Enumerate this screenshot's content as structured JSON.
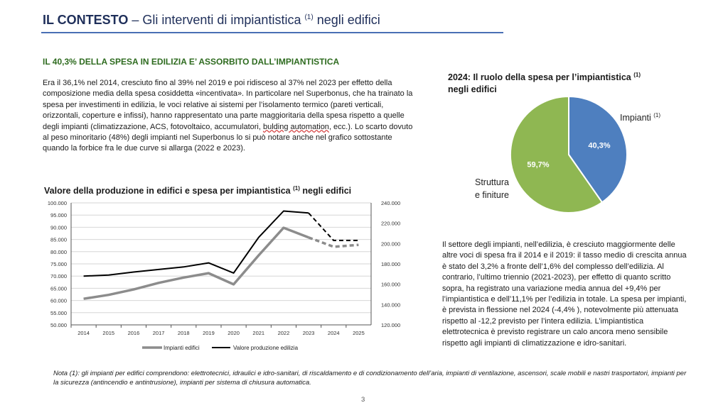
{
  "header": {
    "title_bold": "IL CONTESTO",
    "title_rest": " – Gli interventi di impiantistica ",
    "title_sup": "(1)",
    "title_tail": " negli edifici"
  },
  "section_title": "IL 40,3% DELLA SPESA IN EDILIZIA E’ ASSORBITO DALL’IMPIANTISTICA",
  "intro": {
    "before": "Era il 36,1% nel 2014, cresciuto fino al 39% nel 2019 e poi ridisceso al 37% nel 2023 per effetto della composizione media della spesa cosiddetta «incentivata». In particolare nel Superbonus, che ha trainato la spesa per investimenti in edilizia, le voci relative ai sistemi per l’isolamento termico (pareti verticali, orizzontali, coperture e infissi), hanno rappresentato una parte maggioritaria della spesa rispetto a quelle degli impianti (climatizzazione, ACS, fotovoltaico, accumulatori, ",
    "squiggle": "bulding automation",
    "after": ", ecc.). Lo scarto dovuto al peso minoritario (48%) degli impianti nel Superbonus lo si può notare anche nel grafico sottostante quando la forbice fra le due curve si allarga (2022 e 2023)."
  },
  "line_chart_title": {
    "text": "Valore della produzione in edifici e spesa per impiantistica ",
    "sup": "(1)",
    "tail": " negli edifici"
  },
  "pie_title": {
    "text": "2024: Il ruolo della spesa per l’impiantistica ",
    "sup": "(1)",
    "line2": "negli edifici"
  },
  "right_text": "Il settore degli impianti, nell’edilizia, è cresciuto maggiormente delle altre voci di spesa fra il 2014 e il 2019: il tasso medio di crescita annua è stato del 3,2%  a fronte dell’1,6% del complesso dell’edilizia. Al contrario, l’ultimo triennio (2021-2023), per effetto di quanto scritto sopra, ha registrato una variazione media annua del +9,4% per l’impiantistica e dell’11,1% per l’edilizia in totale.  La spesa per impianti, è prevista in flessione nel 2024 (-4,4% ), notevolmente più attenuata rispetto al -12,2 previsto per l’intera edilizia.  L’impiantistica elettrotecnica è previsto registrare un calo ancora meno sensibile rispetto agli impianti di climatizzazione e idro-sanitari.",
  "note": "Nota (1): gli impianti per edifici comprendono:  elettrotecnici, idraulici e idro-sanitari, di riscaldamento e di condizionamento dell’aria, impianti di ventilazione, ascensori, scale mobili e nastri trasportatori, impianti per la sicurezza (antincendio e antintrusione), impianti per sistema di chiusura automatica.",
  "page_number": "3",
  "chart_data": [
    {
      "type": "line",
      "x": [
        "2014",
        "2015",
        "2016",
        "2017",
        "2018",
        "2019",
        "2020",
        "2021",
        "2022",
        "2023",
        "2024",
        "2025"
      ],
      "series": [
        {
          "name": "Impianti edifici",
          "axis": "left",
          "color": "#8c8c8c",
          "values": [
            60.7,
            62.3,
            64.5,
            67.2,
            69.4,
            71.2,
            66.6,
            78.5,
            89.8,
            85.8,
            82.0,
            82.8
          ],
          "forecast_from_index": 9
        },
        {
          "name": "Valore produzione edilizia",
          "axis": "right",
          "color": "#000000",
          "values": [
            168,
            169,
            172,
            174.5,
            177,
            181,
            171,
            206,
            232,
            230,
            203,
            203
          ],
          "forecast_from_index": 9
        }
      ],
      "ylim_left": [
        50000,
        100000
      ],
      "yticks_left": [
        "100.000",
        "95.000",
        "90.000",
        "85.000",
        "80.000",
        "75.000",
        "70.000",
        "65.000",
        "60.000",
        "55.000",
        "50.000"
      ],
      "ylim_right": [
        120000,
        240000
      ],
      "yticks_right": [
        "240.000",
        "220.000",
        "200.000",
        "180.000",
        "160.000",
        "140.000",
        "120.000"
      ],
      "legend": [
        "Impianti edifici",
        "Valore produzione edilizia"
      ]
    },
    {
      "type": "pie",
      "slices": [
        {
          "label": "Impianti",
          "sup": "(1)",
          "value": 40.3,
          "display": "40,3%",
          "color": "#4e7fbf"
        },
        {
          "label_line1": "Struttura",
          "label_line2": "e finiture",
          "value": 59.7,
          "display": "59,7%",
          "color": "#8fb752"
        }
      ]
    }
  ]
}
